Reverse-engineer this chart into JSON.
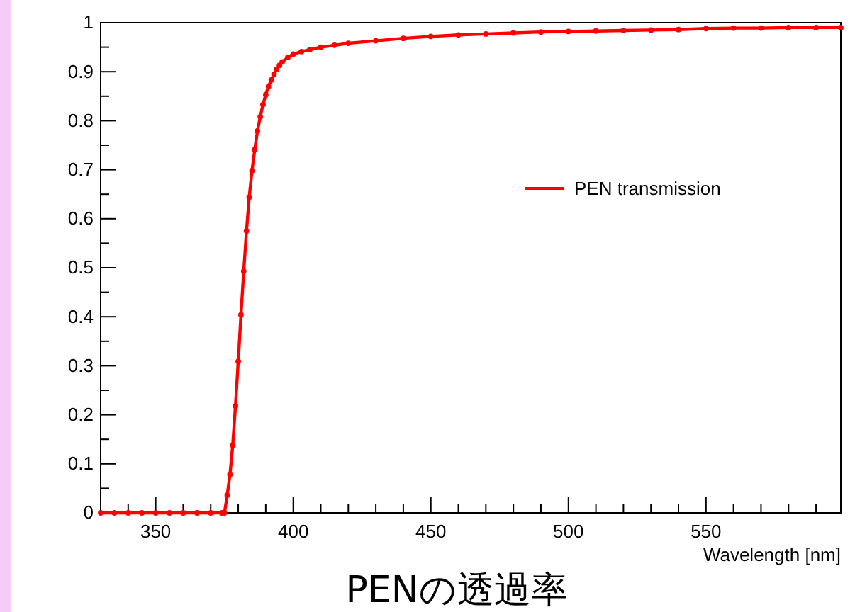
{
  "chart_data": {
    "type": "line",
    "title": "PENの透過率",
    "xlabel": "Wavelength [nm]",
    "xlim": [
      330,
      599
    ],
    "ylim": [
      0,
      1
    ],
    "xticks": [
      {
        "value": 340,
        "label": null
      },
      350,
      {
        "value": 360,
        "label": null
      },
      {
        "value": 370,
        "label": null
      },
      {
        "value": 380,
        "label": null
      },
      {
        "value": 390,
        "label": null
      },
      400,
      {
        "value": 410,
        "label": null
      },
      {
        "value": 420,
        "label": null
      },
      {
        "value": 430,
        "label": null
      },
      {
        "value": 440,
        "label": null
      },
      450,
      {
        "value": 460,
        "label": null
      },
      {
        "value": 470,
        "label": null
      },
      {
        "value": 480,
        "label": null
      },
      {
        "value": 490,
        "label": null
      },
      500,
      {
        "value": 510,
        "label": null
      },
      {
        "value": 520,
        "label": null
      },
      {
        "value": 530,
        "label": null
      },
      {
        "value": 540,
        "label": null
      },
      550,
      {
        "value": 560,
        "label": null
      },
      {
        "value": 570,
        "label": null
      },
      {
        "value": 580,
        "label": null
      },
      {
        "value": 590,
        "label": null
      }
    ],
    "yticks": [
      0,
      {
        "value": 0.05,
        "label": null
      },
      0.1,
      {
        "value": 0.15,
        "label": null
      },
      0.2,
      {
        "value": 0.25,
        "label": null
      },
      0.3,
      {
        "value": 0.35,
        "label": null
      },
      0.4,
      {
        "value": 0.45,
        "label": null
      },
      0.5,
      {
        "value": 0.55,
        "label": null
      },
      0.6,
      {
        "value": 0.65,
        "label": null
      },
      0.7,
      {
        "value": 0.75,
        "label": null
      },
      0.8,
      {
        "value": 0.85,
        "label": null
      },
      0.9,
      {
        "value": 0.95,
        "label": null
      },
      1
    ],
    "grid": false,
    "legend": "right",
    "marker": "circle",
    "line_style": "solid",
    "series": [
      {
        "name": "PEN transmission",
        "color": "#ff0000",
        "x": [
          330,
          335,
          340,
          345,
          350,
          355,
          360,
          365,
          370,
          374,
          375,
          376,
          377,
          378,
          379,
          380,
          381,
          382,
          383,
          384,
          385,
          386,
          387,
          388,
          389,
          390,
          391,
          392,
          393,
          394,
          395,
          396,
          398,
          400,
          403,
          406,
          410,
          415,
          420,
          430,
          440,
          450,
          460,
          470,
          480,
          490,
          500,
          510,
          520,
          530,
          540,
          550,
          560,
          570,
          580,
          590,
          599
        ],
        "values": [
          0,
          0,
          0,
          0,
          0,
          0,
          0,
          0,
          0,
          0,
          0,
          0.036,
          0.078,
          0.138,
          0.218,
          0.309,
          0.404,
          0.493,
          0.575,
          0.644,
          0.698,
          0.741,
          0.779,
          0.808,
          0.833,
          0.853,
          0.87,
          0.883,
          0.895,
          0.905,
          0.913,
          0.92,
          0.929,
          0.936,
          0.941,
          0.945,
          0.95,
          0.954,
          0.958,
          0.963,
          0.968,
          0.972,
          0.975,
          0.977,
          0.979,
          0.981,
          0.982,
          0.983,
          0.984,
          0.985,
          0.986,
          0.988,
          0.989,
          0.989,
          0.99,
          0.99,
          0.99
        ]
      }
    ]
  }
}
